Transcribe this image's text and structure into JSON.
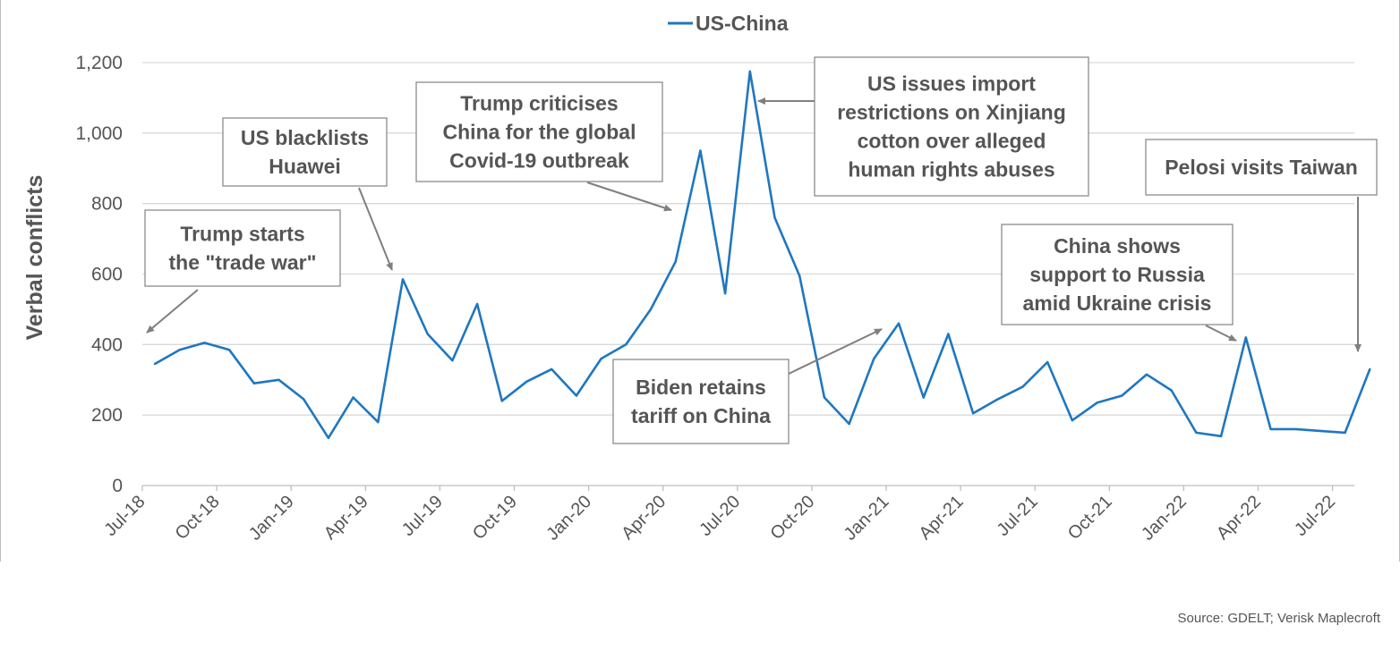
{
  "chart_data": {
    "type": "line",
    "ylabel": "Verbal conflicts",
    "xlabel": "",
    "ylim": [
      0,
      1200
    ],
    "yticks": [
      0,
      200,
      400,
      600,
      800,
      1000,
      1200
    ],
    "ytick_labels": [
      "0",
      "200",
      "400",
      "600",
      "800",
      "1,000",
      "1,200"
    ],
    "xtick_labels": [
      "Jul-18",
      "Oct-18",
      "Jan-19",
      "Apr-19",
      "Jul-19",
      "Oct-19",
      "Jan-20",
      "Apr-20",
      "Jul-20",
      "Oct-20",
      "Jan-21",
      "Apr-21",
      "Jul-21",
      "Oct-21",
      "Jan-22",
      "Apr-22",
      "Jul-22"
    ],
    "grid": true,
    "legend_position": "top-center",
    "series": [
      {
        "name": "US-China",
        "color": "#1f77c0",
        "x": [
          "Jul-18",
          "Aug-18",
          "Sep-18",
          "Oct-18",
          "Nov-18",
          "Dec-18",
          "Jan-19",
          "Feb-19",
          "Mar-19",
          "Apr-19",
          "May-19",
          "Jun-19",
          "Jul-19",
          "Aug-19",
          "Sep-19",
          "Oct-19",
          "Nov-19",
          "Dec-19",
          "Jan-20",
          "Feb-20",
          "Mar-20",
          "Apr-20",
          "May-20",
          "Jun-20",
          "Jul-20",
          "Aug-20",
          "Sep-20",
          "Oct-20",
          "Nov-20",
          "Dec-20",
          "Jan-21",
          "Feb-21",
          "Mar-21",
          "Apr-21",
          "May-21",
          "Jun-21",
          "Jul-21",
          "Aug-21",
          "Sep-21",
          "Oct-21",
          "Nov-21",
          "Dec-21",
          "Jan-22",
          "Feb-22",
          "Mar-22",
          "Apr-22",
          "May-22",
          "Jun-22",
          "Jul-22",
          "Aug-22"
        ],
        "values": [
          345,
          385,
          405,
          385,
          290,
          300,
          245,
          135,
          250,
          180,
          585,
          430,
          355,
          515,
          240,
          295,
          330,
          255,
          360,
          400,
          500,
          635,
          950,
          545,
          1175,
          760,
          595,
          250,
          175,
          360,
          460,
          250,
          430,
          205,
          245,
          280,
          350,
          185,
          235,
          255,
          315,
          270,
          150,
          140,
          420,
          160,
          160,
          155,
          150,
          330
        ]
      }
    ],
    "annotations": [
      {
        "id": "trade-war",
        "lines": [
          "Trump starts",
          "the \"trade war\""
        ],
        "target": "Jul-18"
      },
      {
        "id": "huawei",
        "lines": [
          "US blacklists",
          "Huawei"
        ],
        "target": "May-19"
      },
      {
        "id": "covid",
        "lines": [
          "Trump criticises",
          "China for the global",
          "Covid-19 outbreak"
        ],
        "target": "Apr-20"
      },
      {
        "id": "xinjiang",
        "lines": [
          "US issues import",
          "restrictions on Xinjiang",
          "cotton over alleged",
          "human rights abuses"
        ],
        "target": "Jul-20"
      },
      {
        "id": "biden",
        "lines": [
          "Biden retains",
          "tariff on China"
        ],
        "target": "Jan-21"
      },
      {
        "id": "russia",
        "lines": [
          "China shows",
          "support to Russia",
          "amid Ukraine crisis"
        ],
        "target": "Mar-22"
      },
      {
        "id": "pelosi",
        "lines": [
          "Pelosi visits Taiwan"
        ],
        "target": "Aug-22"
      }
    ]
  },
  "footer": {
    "source": "Source: GDELT; Verisk Maplecroft"
  }
}
